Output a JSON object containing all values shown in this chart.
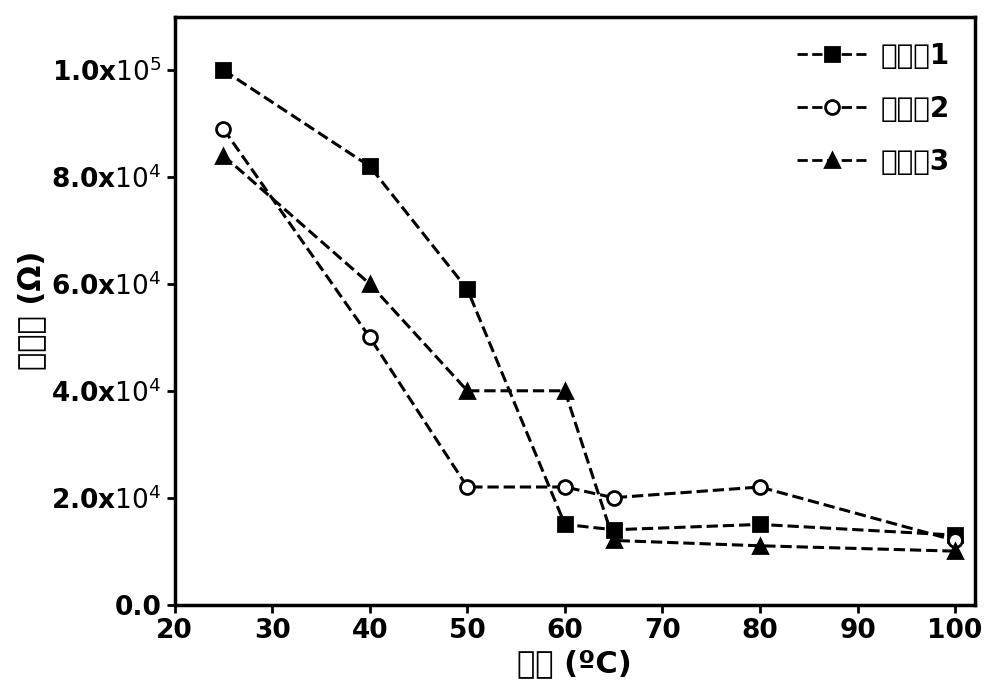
{
  "series": [
    {
      "label": "实施例1",
      "x": [
        25,
        40,
        50,
        60,
        65,
        80,
        100
      ],
      "y": [
        100000,
        82000,
        59000,
        15000,
        14000,
        15000,
        13000
      ],
      "marker": "s",
      "marker_fill": "black",
      "linestyle": "--",
      "color": "black",
      "markersize": 10
    },
    {
      "label": "实施例2",
      "x": [
        25,
        40,
        50,
        60,
        65,
        80,
        100
      ],
      "y": [
        89000,
        50000,
        22000,
        22000,
        20000,
        22000,
        12000
      ],
      "marker": "o",
      "marker_fill": "white",
      "linestyle": "--",
      "color": "black",
      "markersize": 10
    },
    {
      "label": "实施例3",
      "x": [
        25,
        40,
        50,
        60,
        65,
        80,
        100
      ],
      "y": [
        84000,
        60000,
        40000,
        40000,
        12000,
        11000,
        10000
      ],
      "marker": "^",
      "marker_fill": "black",
      "linestyle": "--",
      "color": "black",
      "markersize": 10
    }
  ],
  "xlabel": "温度 (ºC)",
  "ylabel": "电阻値 (Ω)",
  "xlim": [
    20,
    102
  ],
  "ylim": [
    0,
    110000
  ],
  "xticks": [
    20,
    30,
    40,
    50,
    60,
    70,
    80,
    90,
    100
  ],
  "yticks": [
    0,
    20000,
    40000,
    60000,
    80000,
    100000
  ],
  "ytick_labels": [
    "0.0",
    "2.0x10^4",
    "4.0x10^4",
    "6.0x10^4",
    "8.0x10^4",
    "1.0x10^5"
  ],
  "axis_fontsize": 22,
  "tick_fontsize": 19,
  "legend_fontsize": 20,
  "background_color": "#ffffff",
  "linewidth": 2.2
}
